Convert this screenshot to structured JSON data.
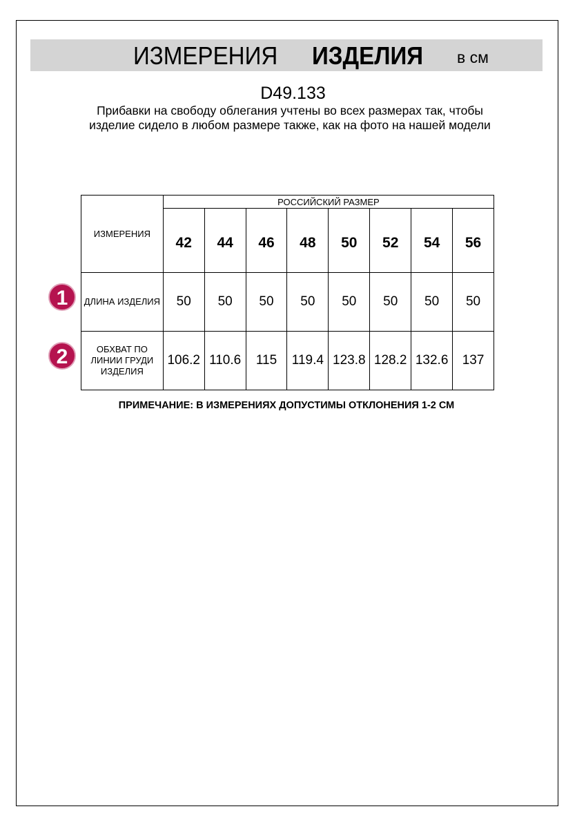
{
  "header": {
    "title_regular": "ИЗМЕРЕНИЯ",
    "title_bold": "ИЗДЕЛИЯ",
    "unit": "в см",
    "banner_color": "#d4d4d4"
  },
  "product_code": "D49.133",
  "description": "Прибавки на свободу облегания учтены во всех размерах так, чтобы изделие сидело в любом размере также, как на фото на нашей модели",
  "table": {
    "corner_label": "ИЗМЕРЕНИЯ",
    "group_header": "РОССИЙСКИЙ РАЗМЕР",
    "sizes": [
      "42",
      "44",
      "46",
      "48",
      "50",
      "52",
      "54",
      "56"
    ],
    "rows": [
      {
        "badge": "1",
        "label": "ДЛИНА ИЗДЕЛИЯ",
        "values": [
          "50",
          "50",
          "50",
          "50",
          "50",
          "50",
          "50",
          "50"
        ]
      },
      {
        "badge": "2",
        "label": "ОБХВАТ ПО ЛИНИИ ГРУДИ ИЗДЕЛИЯ",
        "values": [
          "106.2",
          "110.6",
          "115",
          "119.4",
          "123.8",
          "128.2",
          "132.6",
          "137"
        ]
      }
    ],
    "badge_color": "#b5134f"
  },
  "note": "ПРИМЕЧАНИЕ: В ИЗМЕРЕНИЯХ ДОПУСТИМЫ ОТКЛОНЕНИЯ 1-2 СМ"
}
